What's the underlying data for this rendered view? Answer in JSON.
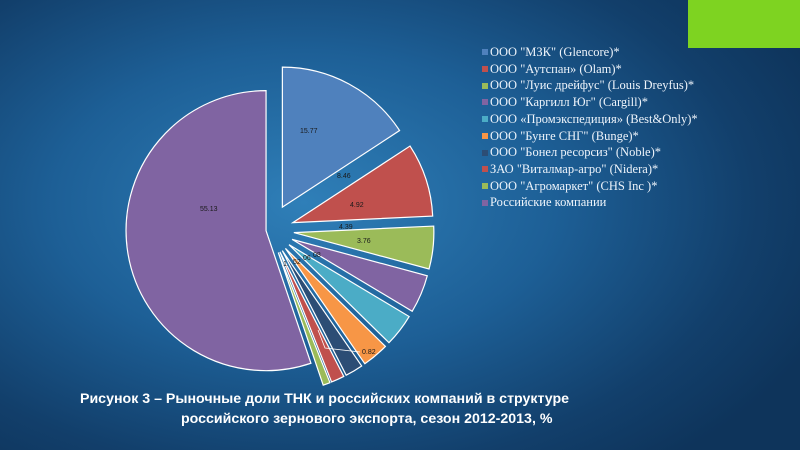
{
  "chart_data": {
    "type": "pie",
    "slices": [
      {
        "label": "ООО \"МЗК\" (Glencore)*",
        "value": 15.77,
        "value_label": "15.77",
        "color": "#4f81bd"
      },
      {
        "label": "ООО \"Аутспан» (Olam)*",
        "value": 8.46,
        "value_label": "8.46",
        "color": "#c0504d"
      },
      {
        "label": "ООО \"Луис дрейфус\" (Louis Dreyfus)*",
        "value": 4.92,
        "value_label": "4.92",
        "color": "#9bbb59"
      },
      {
        "label": "ООО \"Каргилл Юг\" (Cargill)*",
        "value": 4.39,
        "value_label": "4.39",
        "color": "#8064a2"
      },
      {
        "label": "ООО «Промэкспедиция» (Best&Only)*",
        "value": 3.76,
        "value_label": "3.76",
        "color": "#4bacc6"
      },
      {
        "label": "ООО \"Бунге СНГ\" (Bunge)*",
        "value": 3.06,
        "value_label": "",
        "color": "#f79646"
      },
      {
        "label": "ООО \"Бонел ресорсиз\"  (Noble)*",
        "value": 2.05,
        "value_label": "",
        "color": "#2c4d75"
      },
      {
        "label": "ЗАО \"Виталмар-агро\" (Nidera)*",
        "value": 1.52,
        "value_label": "",
        "color": "#c0504d"
      },
      {
        "label": "ООО \"Агромаркет\" (CHS Inc )*",
        "value": 0.82,
        "value_label": "0.82",
        "color": "#9bbb59"
      },
      {
        "label": "Российские компании",
        "value": 55.13,
        "value_label": "55.13",
        "color": "#8064a2"
      }
    ],
    "partial_labels": [
      "08",
      "06",
      "52",
      "1."
    ],
    "legend_position": "right"
  },
  "caption": {
    "line1": "Рисунок 3 – Рыночные доли ТНК и российских компаний в структуре",
    "line2": "российского зернового экспорта, сезон 2012-2013, %"
  }
}
